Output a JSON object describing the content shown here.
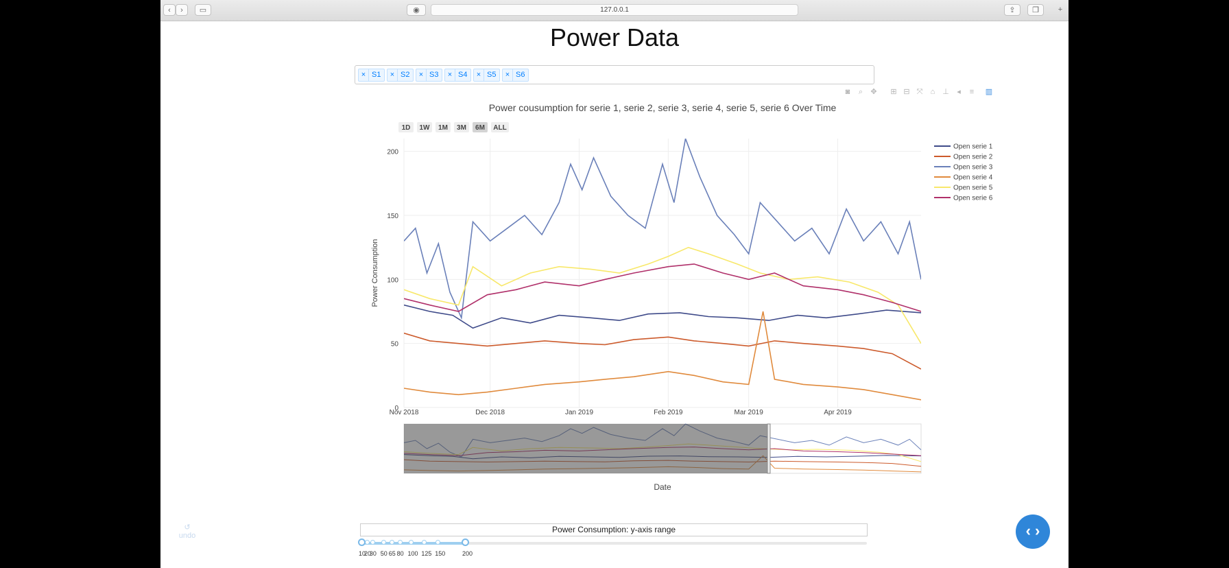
{
  "browser": {
    "url": "127.0.0.1",
    "controls": [
      {
        "name": "back-button",
        "glyph": "‹"
      },
      {
        "name": "forward-button",
        "glyph": "›"
      },
      {
        "name": "sidebar-toggle-button",
        "glyph": "▭"
      }
    ]
  },
  "page": {
    "title": "Power Data"
  },
  "series_select": {
    "chips": [
      {
        "remove": "×",
        "label": "S1"
      },
      {
        "remove": "×",
        "label": "S2"
      },
      {
        "remove": "×",
        "label": "S3"
      },
      {
        "remove": "×",
        "label": "S4"
      },
      {
        "remove": "×",
        "label": "S5"
      },
      {
        "remove": "×",
        "label": "S6"
      }
    ]
  },
  "modebar": [
    "camera-icon",
    "zoom-icon",
    "pan-icon",
    "zoom-in-icon",
    "zoom-out-icon",
    "autoscale-icon",
    "reset-axes-icon",
    "spike-lines-icon",
    "hover-closest-icon",
    "hover-compare-icon",
    "plotly-logo-icon"
  ],
  "range_buttons": [
    {
      "label": "1D",
      "active": false
    },
    {
      "label": "1W",
      "active": false
    },
    {
      "label": "1M",
      "active": false
    },
    {
      "label": "3M",
      "active": false
    },
    {
      "label": "6M",
      "active": true
    },
    {
      "label": "ALL",
      "active": false
    }
  ],
  "chart_data": {
    "type": "line",
    "title": "Power cousumption for serie 1, serie 2, serie 3, serie 4, serie 5, serie 6 Over Time",
    "xlabel": "Date",
    "ylabel": "Power Consumption",
    "x_range": [
      "2018-11-01",
      "2019-04-30"
    ],
    "ylim": [
      0,
      210
    ],
    "y_ticks": [
      0,
      50,
      100,
      150,
      200
    ],
    "x_ticks": [
      {
        "date": "2018-11-01",
        "label": "Nov 2018"
      },
      {
        "date": "2018-12-01",
        "label": "Dec 2018"
      },
      {
        "date": "2019-01-01",
        "label": "Jan 2019"
      },
      {
        "date": "2019-02-01",
        "label": "Feb 2019"
      },
      {
        "date": "2019-03-01",
        "label": "Mar 2019"
      },
      {
        "date": "2019-04-01",
        "label": "Apr 2019"
      }
    ],
    "grid": true,
    "legend_position": "right",
    "rangeslider": {
      "visible": true,
      "selected_range": [
        "2018-11-01",
        "2019-03-08"
      ]
    },
    "series": [
      {
        "name": "Open serie 1",
        "color": "#3e4a89",
        "points": [
          [
            "2018-11-01",
            80
          ],
          [
            "2018-11-10",
            75
          ],
          [
            "2018-11-18",
            72
          ],
          [
            "2018-11-25",
            62
          ],
          [
            "2018-12-05",
            70
          ],
          [
            "2018-12-15",
            66
          ],
          [
            "2018-12-25",
            72
          ],
          [
            "2019-01-05",
            70
          ],
          [
            "2019-01-15",
            68
          ],
          [
            "2019-01-25",
            73
          ],
          [
            "2019-02-05",
            74
          ],
          [
            "2019-02-15",
            71
          ],
          [
            "2019-02-25",
            70
          ],
          [
            "2019-03-08",
            68
          ],
          [
            "2019-03-18",
            72
          ],
          [
            "2019-03-28",
            70
          ],
          [
            "2019-04-08",
            73
          ],
          [
            "2019-04-18",
            76
          ],
          [
            "2019-04-30",
            74
          ]
        ]
      },
      {
        "name": "Open serie 2",
        "color": "#cc5a2b",
        "points": [
          [
            "2018-11-01",
            58
          ],
          [
            "2018-11-10",
            52
          ],
          [
            "2018-11-20",
            50
          ],
          [
            "2018-11-30",
            48
          ],
          [
            "2018-12-10",
            50
          ],
          [
            "2018-12-20",
            52
          ],
          [
            "2019-01-01",
            50
          ],
          [
            "2019-01-10",
            49
          ],
          [
            "2019-01-20",
            53
          ],
          [
            "2019-02-01",
            55
          ],
          [
            "2019-02-10",
            52
          ],
          [
            "2019-02-20",
            50
          ],
          [
            "2019-03-01",
            48
          ],
          [
            "2019-03-10",
            52
          ],
          [
            "2019-03-20",
            50
          ],
          [
            "2019-04-01",
            48
          ],
          [
            "2019-04-10",
            46
          ],
          [
            "2019-04-20",
            42
          ],
          [
            "2019-04-30",
            30
          ]
        ]
      },
      {
        "name": "Open serie 3",
        "color": "#6a80b9",
        "points": [
          [
            "2018-11-01",
            130
          ],
          [
            "2018-11-05",
            140
          ],
          [
            "2018-11-09",
            105
          ],
          [
            "2018-11-13",
            128
          ],
          [
            "2018-11-17",
            90
          ],
          [
            "2018-11-21",
            70
          ],
          [
            "2018-11-25",
            145
          ],
          [
            "2018-12-01",
            130
          ],
          [
            "2018-12-07",
            140
          ],
          [
            "2018-12-13",
            150
          ],
          [
            "2018-12-19",
            135
          ],
          [
            "2018-12-25",
            160
          ],
          [
            "2018-12-29",
            190
          ],
          [
            "2019-01-02",
            170
          ],
          [
            "2019-01-06",
            195
          ],
          [
            "2019-01-12",
            165
          ],
          [
            "2019-01-18",
            150
          ],
          [
            "2019-01-24",
            140
          ],
          [
            "2019-01-30",
            190
          ],
          [
            "2019-02-03",
            160
          ],
          [
            "2019-02-07",
            210
          ],
          [
            "2019-02-12",
            180
          ],
          [
            "2019-02-18",
            150
          ],
          [
            "2019-02-24",
            135
          ],
          [
            "2019-03-01",
            120
          ],
          [
            "2019-03-05",
            160
          ],
          [
            "2019-03-11",
            145
          ],
          [
            "2019-03-17",
            130
          ],
          [
            "2019-03-23",
            140
          ],
          [
            "2019-03-29",
            120
          ],
          [
            "2019-04-04",
            155
          ],
          [
            "2019-04-10",
            130
          ],
          [
            "2019-04-16",
            145
          ],
          [
            "2019-04-22",
            120
          ],
          [
            "2019-04-26",
            145
          ],
          [
            "2019-04-30",
            100
          ]
        ]
      },
      {
        "name": "Open serie 4",
        "color": "#e08a3c",
        "points": [
          [
            "2018-11-01",
            15
          ],
          [
            "2018-11-10",
            12
          ],
          [
            "2018-11-20",
            10
          ],
          [
            "2018-11-30",
            12
          ],
          [
            "2018-12-10",
            15
          ],
          [
            "2018-12-20",
            18
          ],
          [
            "2019-01-01",
            20
          ],
          [
            "2019-01-10",
            22
          ],
          [
            "2019-01-20",
            24
          ],
          [
            "2019-02-01",
            28
          ],
          [
            "2019-02-10",
            25
          ],
          [
            "2019-02-20",
            20
          ],
          [
            "2019-03-01",
            18
          ],
          [
            "2019-03-06",
            75
          ],
          [
            "2019-03-10",
            22
          ],
          [
            "2019-03-20",
            18
          ],
          [
            "2019-04-01",
            16
          ],
          [
            "2019-04-10",
            14
          ],
          [
            "2019-04-20",
            10
          ],
          [
            "2019-04-30",
            6
          ]
        ]
      },
      {
        "name": "Open serie 5",
        "color": "#f8e86a",
        "points": [
          [
            "2018-11-01",
            92
          ],
          [
            "2018-11-10",
            85
          ],
          [
            "2018-11-20",
            80
          ],
          [
            "2018-11-25",
            110
          ],
          [
            "2018-12-05",
            95
          ],
          [
            "2018-12-15",
            105
          ],
          [
            "2018-12-25",
            110
          ],
          [
            "2019-01-05",
            108
          ],
          [
            "2019-01-15",
            105
          ],
          [
            "2019-01-25",
            112
          ],
          [
            "2019-02-01",
            118
          ],
          [
            "2019-02-08",
            125
          ],
          [
            "2019-02-15",
            120
          ],
          [
            "2019-02-25",
            112
          ],
          [
            "2019-03-05",
            105
          ],
          [
            "2019-03-15",
            100
          ],
          [
            "2019-03-25",
            102
          ],
          [
            "2019-04-05",
            98
          ],
          [
            "2019-04-15",
            90
          ],
          [
            "2019-04-22",
            80
          ],
          [
            "2019-04-30",
            50
          ]
        ]
      },
      {
        "name": "Open serie 6",
        "color": "#b0306a",
        "points": [
          [
            "2018-11-01",
            85
          ],
          [
            "2018-11-10",
            80
          ],
          [
            "2018-11-20",
            75
          ],
          [
            "2018-11-30",
            88
          ],
          [
            "2018-12-10",
            92
          ],
          [
            "2018-12-20",
            98
          ],
          [
            "2019-01-01",
            95
          ],
          [
            "2019-01-10",
            100
          ],
          [
            "2019-01-20",
            105
          ],
          [
            "2019-02-01",
            110
          ],
          [
            "2019-02-10",
            112
          ],
          [
            "2019-02-20",
            105
          ],
          [
            "2019-03-01",
            100
          ],
          [
            "2019-03-10",
            105
          ],
          [
            "2019-03-20",
            95
          ],
          [
            "2019-04-01",
            92
          ],
          [
            "2019-04-10",
            88
          ],
          [
            "2019-04-20",
            82
          ],
          [
            "2019-04-30",
            75
          ]
        ]
      }
    ]
  },
  "y_range_slider": {
    "title": "Power Consumption: y-axis range",
    "marks": [
      "10",
      "20",
      "30",
      "50",
      "65",
      "80",
      "100",
      "125",
      "150",
      "200"
    ],
    "mark_values": [
      10,
      20,
      30,
      50,
      65,
      80,
      100,
      125,
      150,
      200
    ],
    "selected": [
      10,
      200
    ]
  },
  "undo": {
    "icon": "↺",
    "label": "undo"
  },
  "fab": {
    "glyph": "‹ ›"
  }
}
